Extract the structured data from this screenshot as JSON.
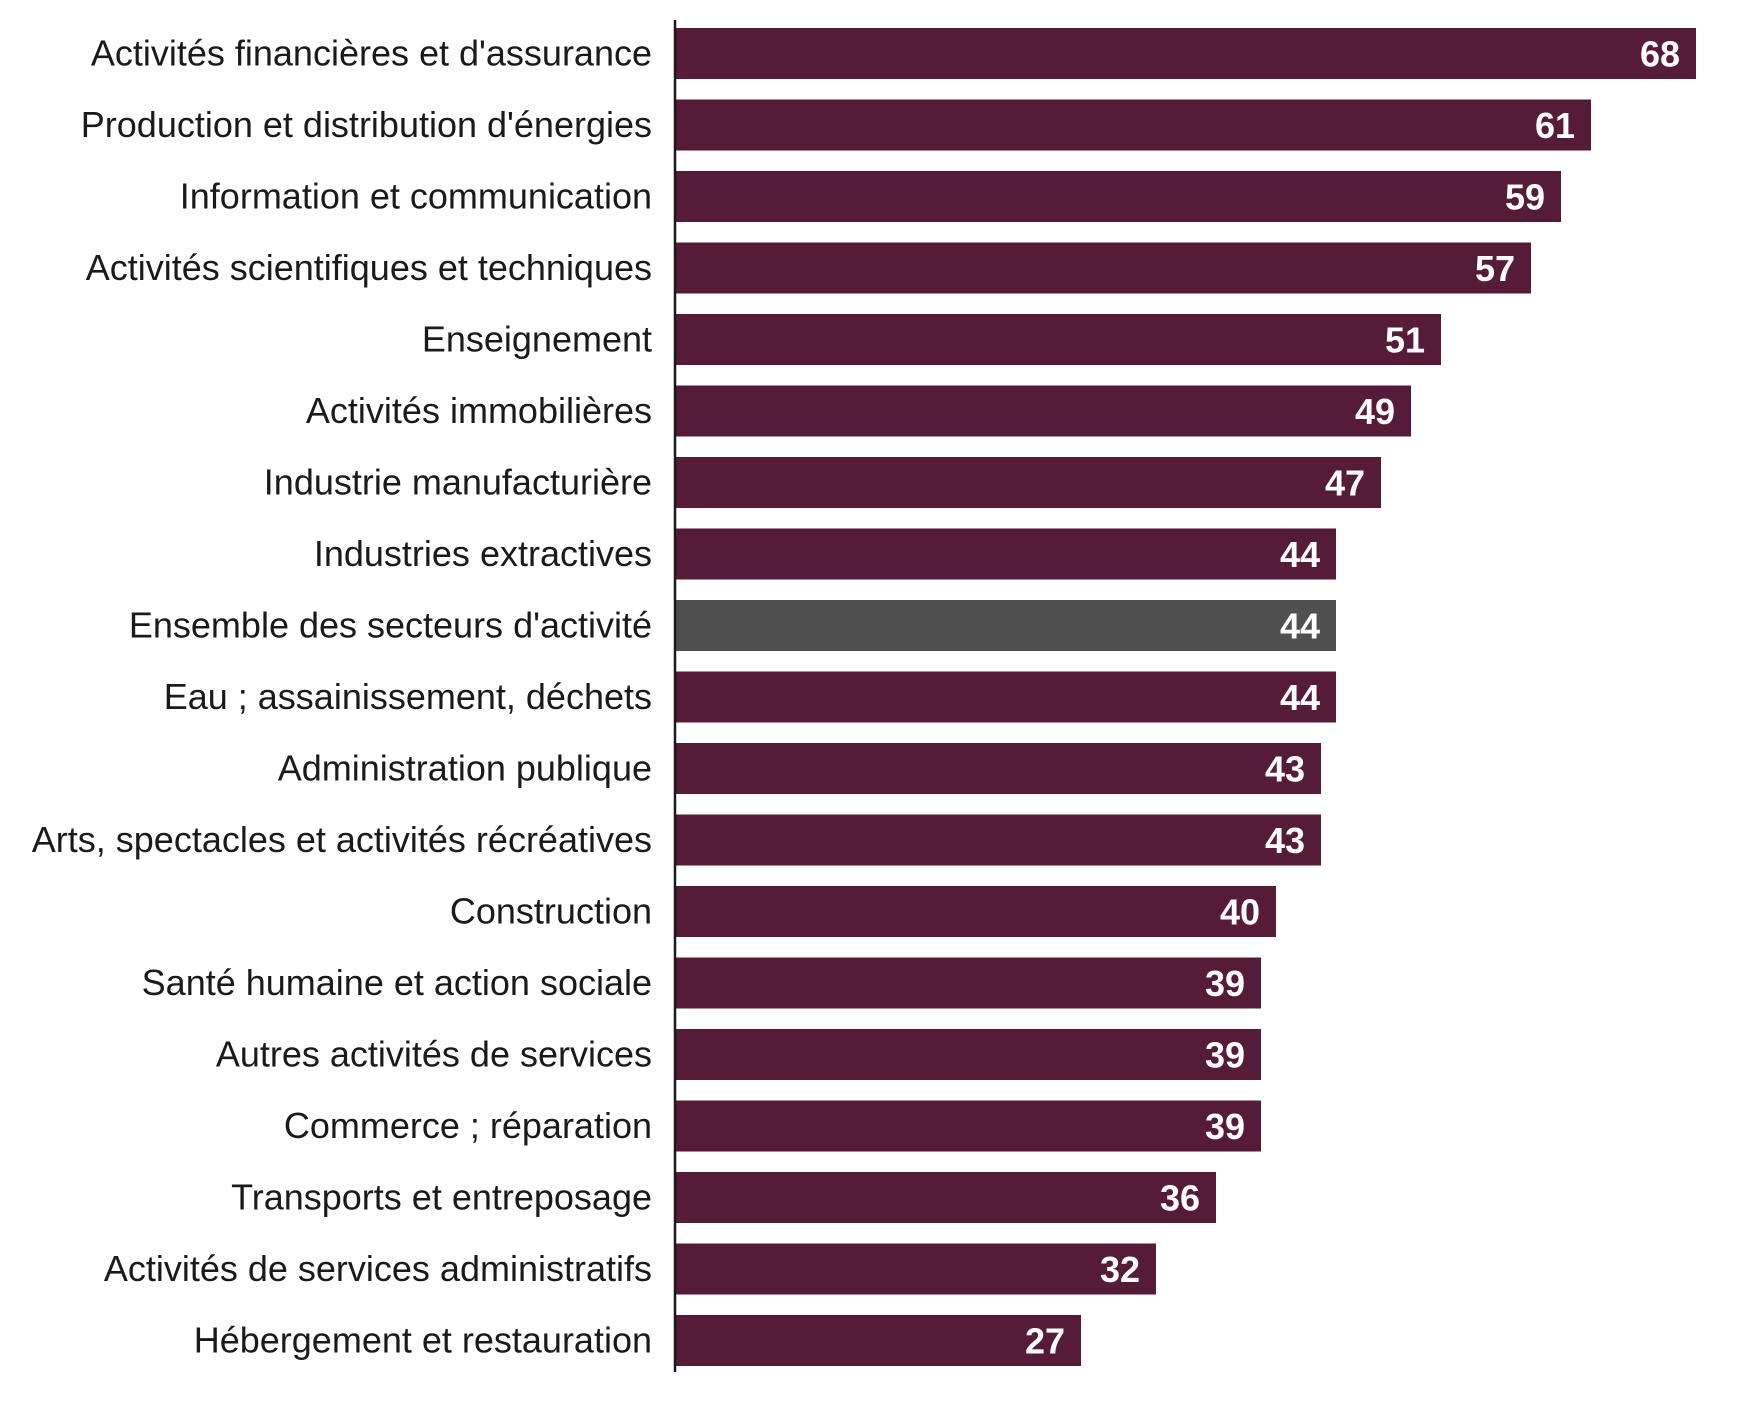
{
  "chart_data": {
    "type": "bar",
    "orientation": "horizontal",
    "title": "",
    "xlabel": "",
    "ylabel": "",
    "xlim": [
      0,
      70
    ],
    "grid": false,
    "legend": "none",
    "categories": [
      "Activités financières et d'assurance",
      "Production et distribution d'énergies",
      "Information et communication",
      "Activités scientifiques et techniques",
      "Enseignement",
      "Activités immobilières",
      "Industrie manufacturière",
      "Industries extractives",
      "Ensemble des secteurs d'activité",
      "Eau ; assainissement, déchets",
      "Administration publique",
      "Arts, spectacles et activités récréatives",
      "Construction",
      "Santé humaine et action sociale",
      "Autres activités de services",
      "Commerce ; réparation",
      "Transports et entreposage",
      "Activités de services administratifs",
      "Hébergement et restauration"
    ],
    "values": [
      68,
      61,
      59,
      57,
      51,
      49,
      47,
      44,
      44,
      44,
      43,
      43,
      40,
      39,
      39,
      39,
      36,
      32,
      27
    ],
    "highlight_index": 8,
    "colors": {
      "bar": "#561b38",
      "highlight": "#505050",
      "axis": "#1a1a1a",
      "value_text": "#ffffff",
      "label_text": "#1a1a1a"
    }
  }
}
